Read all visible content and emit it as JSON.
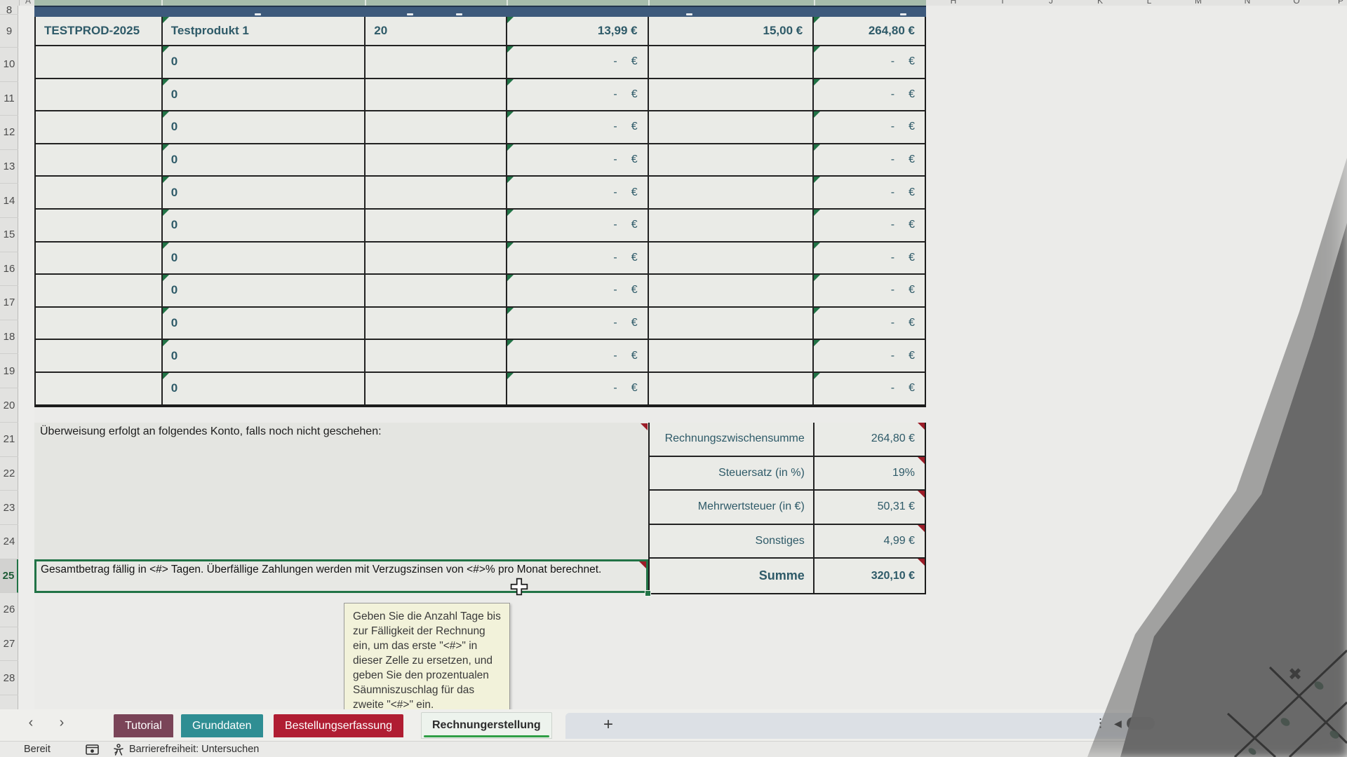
{
  "sheet": {
    "corner_letter_A": "A",
    "visible_row_numbers": [
      "8",
      "9",
      "10",
      "11",
      "12",
      "13",
      "14",
      "15",
      "16",
      "17",
      "18",
      "19",
      "20",
      "21",
      "22",
      "23",
      "24",
      "25",
      "26",
      "27",
      "28"
    ],
    "selected_row_number": "25",
    "column_letters_partial": [
      "H",
      "I",
      "J",
      "K",
      "L",
      "M",
      "N",
      "O",
      "P"
    ]
  },
  "invoice_table": {
    "product_row": {
      "id": "TESTPROD-2025",
      "name": "Testprodukt 1",
      "quantity": "20",
      "unit_price": "13,99 €",
      "shipping": "15,00 €",
      "total": "264,80 €"
    },
    "empty_rows": {
      "count": 11,
      "name_value": "0",
      "dash": "-",
      "currency": "€"
    }
  },
  "notes": {
    "bank_transfer": "Überweisung erfolgt an folgendes Konto, falls noch nicht geschehen:",
    "payment_terms": "Gesamtbetrag fällig in <#> Tagen. Überfällige Zahlungen werden mit Verzugszinsen von <#>% pro Monat berechnet."
  },
  "summary": {
    "rows": [
      {
        "label": "Rechnungszwischensumme",
        "value": "264,80 €"
      },
      {
        "label": "Steuersatz (in %)",
        "value": "19%"
      },
      {
        "label": "Mehrwertsteuer (in €)",
        "value": "50,31 €"
      },
      {
        "label": "Sonstiges",
        "value": "4,99 €"
      },
      {
        "label": "Summe",
        "value": "320,10 €"
      }
    ]
  },
  "tooltip": {
    "text": "Geben Sie die Anzahl Tage bis zur Fälligkeit der Rechnung ein, um das erste \"<#>\" in dieser Zelle zu ersetzen, und geben Sie den prozentualen Säumniszuschlag für das zweite \"<#>\" ein."
  },
  "sheet_tabs": {
    "prev_arrow": "‹",
    "next_arrow": "›",
    "tabs": [
      {
        "label": "Tutorial",
        "color": "#7a4458",
        "active": false
      },
      {
        "label": "Grunddaten",
        "color": "#2f8e93",
        "active": false
      },
      {
        "label": "Bestellungserfassung",
        "color": "#b01d32",
        "active": false
      },
      {
        "label": "Rechnungerstellung",
        "color": "#edf3ed",
        "active": true
      }
    ],
    "add_sheet": "+",
    "overflow_dots": "⋮",
    "scroll_left_arrow": "◀"
  },
  "status_bar": {
    "ready": "Bereit",
    "accessibility": "Barrierefreiheit: Untersuchen"
  },
  "icons": {
    "x_mark": "✖"
  },
  "colors": {
    "accent_green": "#2f9e45",
    "selection_green": "#217346",
    "comment_red": "#9c1c28",
    "flag_green": "#217346",
    "header_band_blue": "#3d5a7c",
    "cell_text_teal": "#2e5a68"
  }
}
